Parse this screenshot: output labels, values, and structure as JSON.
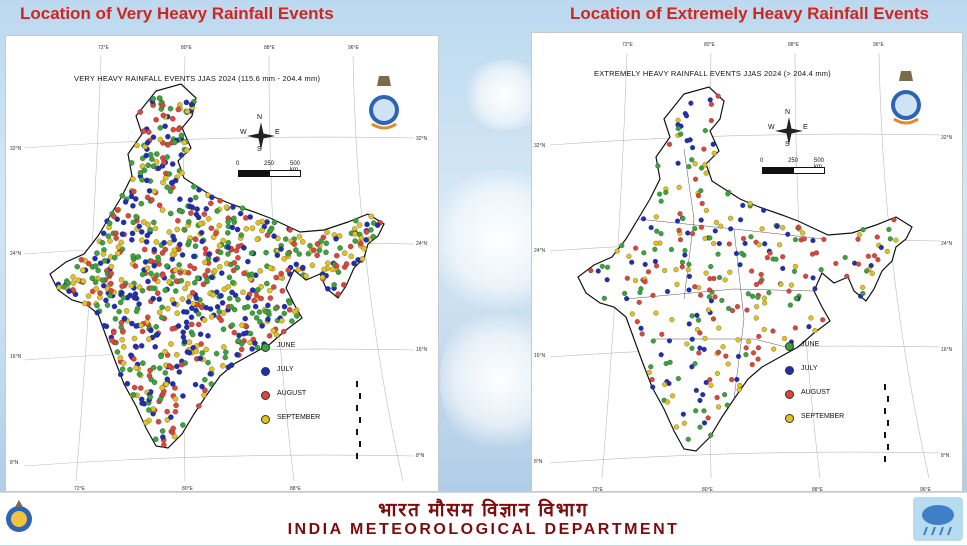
{
  "headings": {
    "left": "Location of Very Heavy Rainfall Events",
    "right": "Location of Extremely Heavy Rainfall Events"
  },
  "left_map": {
    "title": "VERY HEAVY  RAINFALL EVENTS JJAS 2024 (115.6 mm - 204.4 mm)",
    "scale": {
      "zero": "0",
      "mid": "250",
      "end": "500 km"
    },
    "lon_ticks": [
      "72°E",
      "80°E",
      "88°E",
      "96°E"
    ],
    "lat_ticks": [
      "32°N",
      "24°N",
      "16°N",
      "8°N"
    ],
    "compass": {
      "n": "N",
      "s": "S",
      "e": "E",
      "w": "W"
    }
  },
  "right_map": {
    "title": "EXTREMELY HEAVY RAINFALL EVENTS JJAS 2024 (> 204.4 mm)",
    "scale": {
      "zero": "0",
      "mid": "250",
      "end": "500 km"
    },
    "lon_ticks": [
      "72°E",
      "80°E",
      "88°E",
      "96°E"
    ],
    "lat_ticks": [
      "32°N",
      "24°N",
      "16°N",
      "8°N"
    ],
    "compass": {
      "n": "N",
      "s": "S",
      "e": "E",
      "w": "W"
    }
  },
  "legend": [
    {
      "label": "JUNE",
      "color": "#3aa53a"
    },
    {
      "label": "JULY",
      "color": "#1e2fb5"
    },
    {
      "label": "AUGUST",
      "color": "#e0453a"
    },
    {
      "label": "SEPTEMBER",
      "color": "#e3c21f"
    }
  ],
  "footer": {
    "hindi": "भारत मौसम विज्ञान विभाग",
    "english": "INDIA METEOROLOGICAL DEPARTMENT"
  },
  "colors": {
    "heading": "#d0261d",
    "footer_text": "#7a0e0e"
  }
}
